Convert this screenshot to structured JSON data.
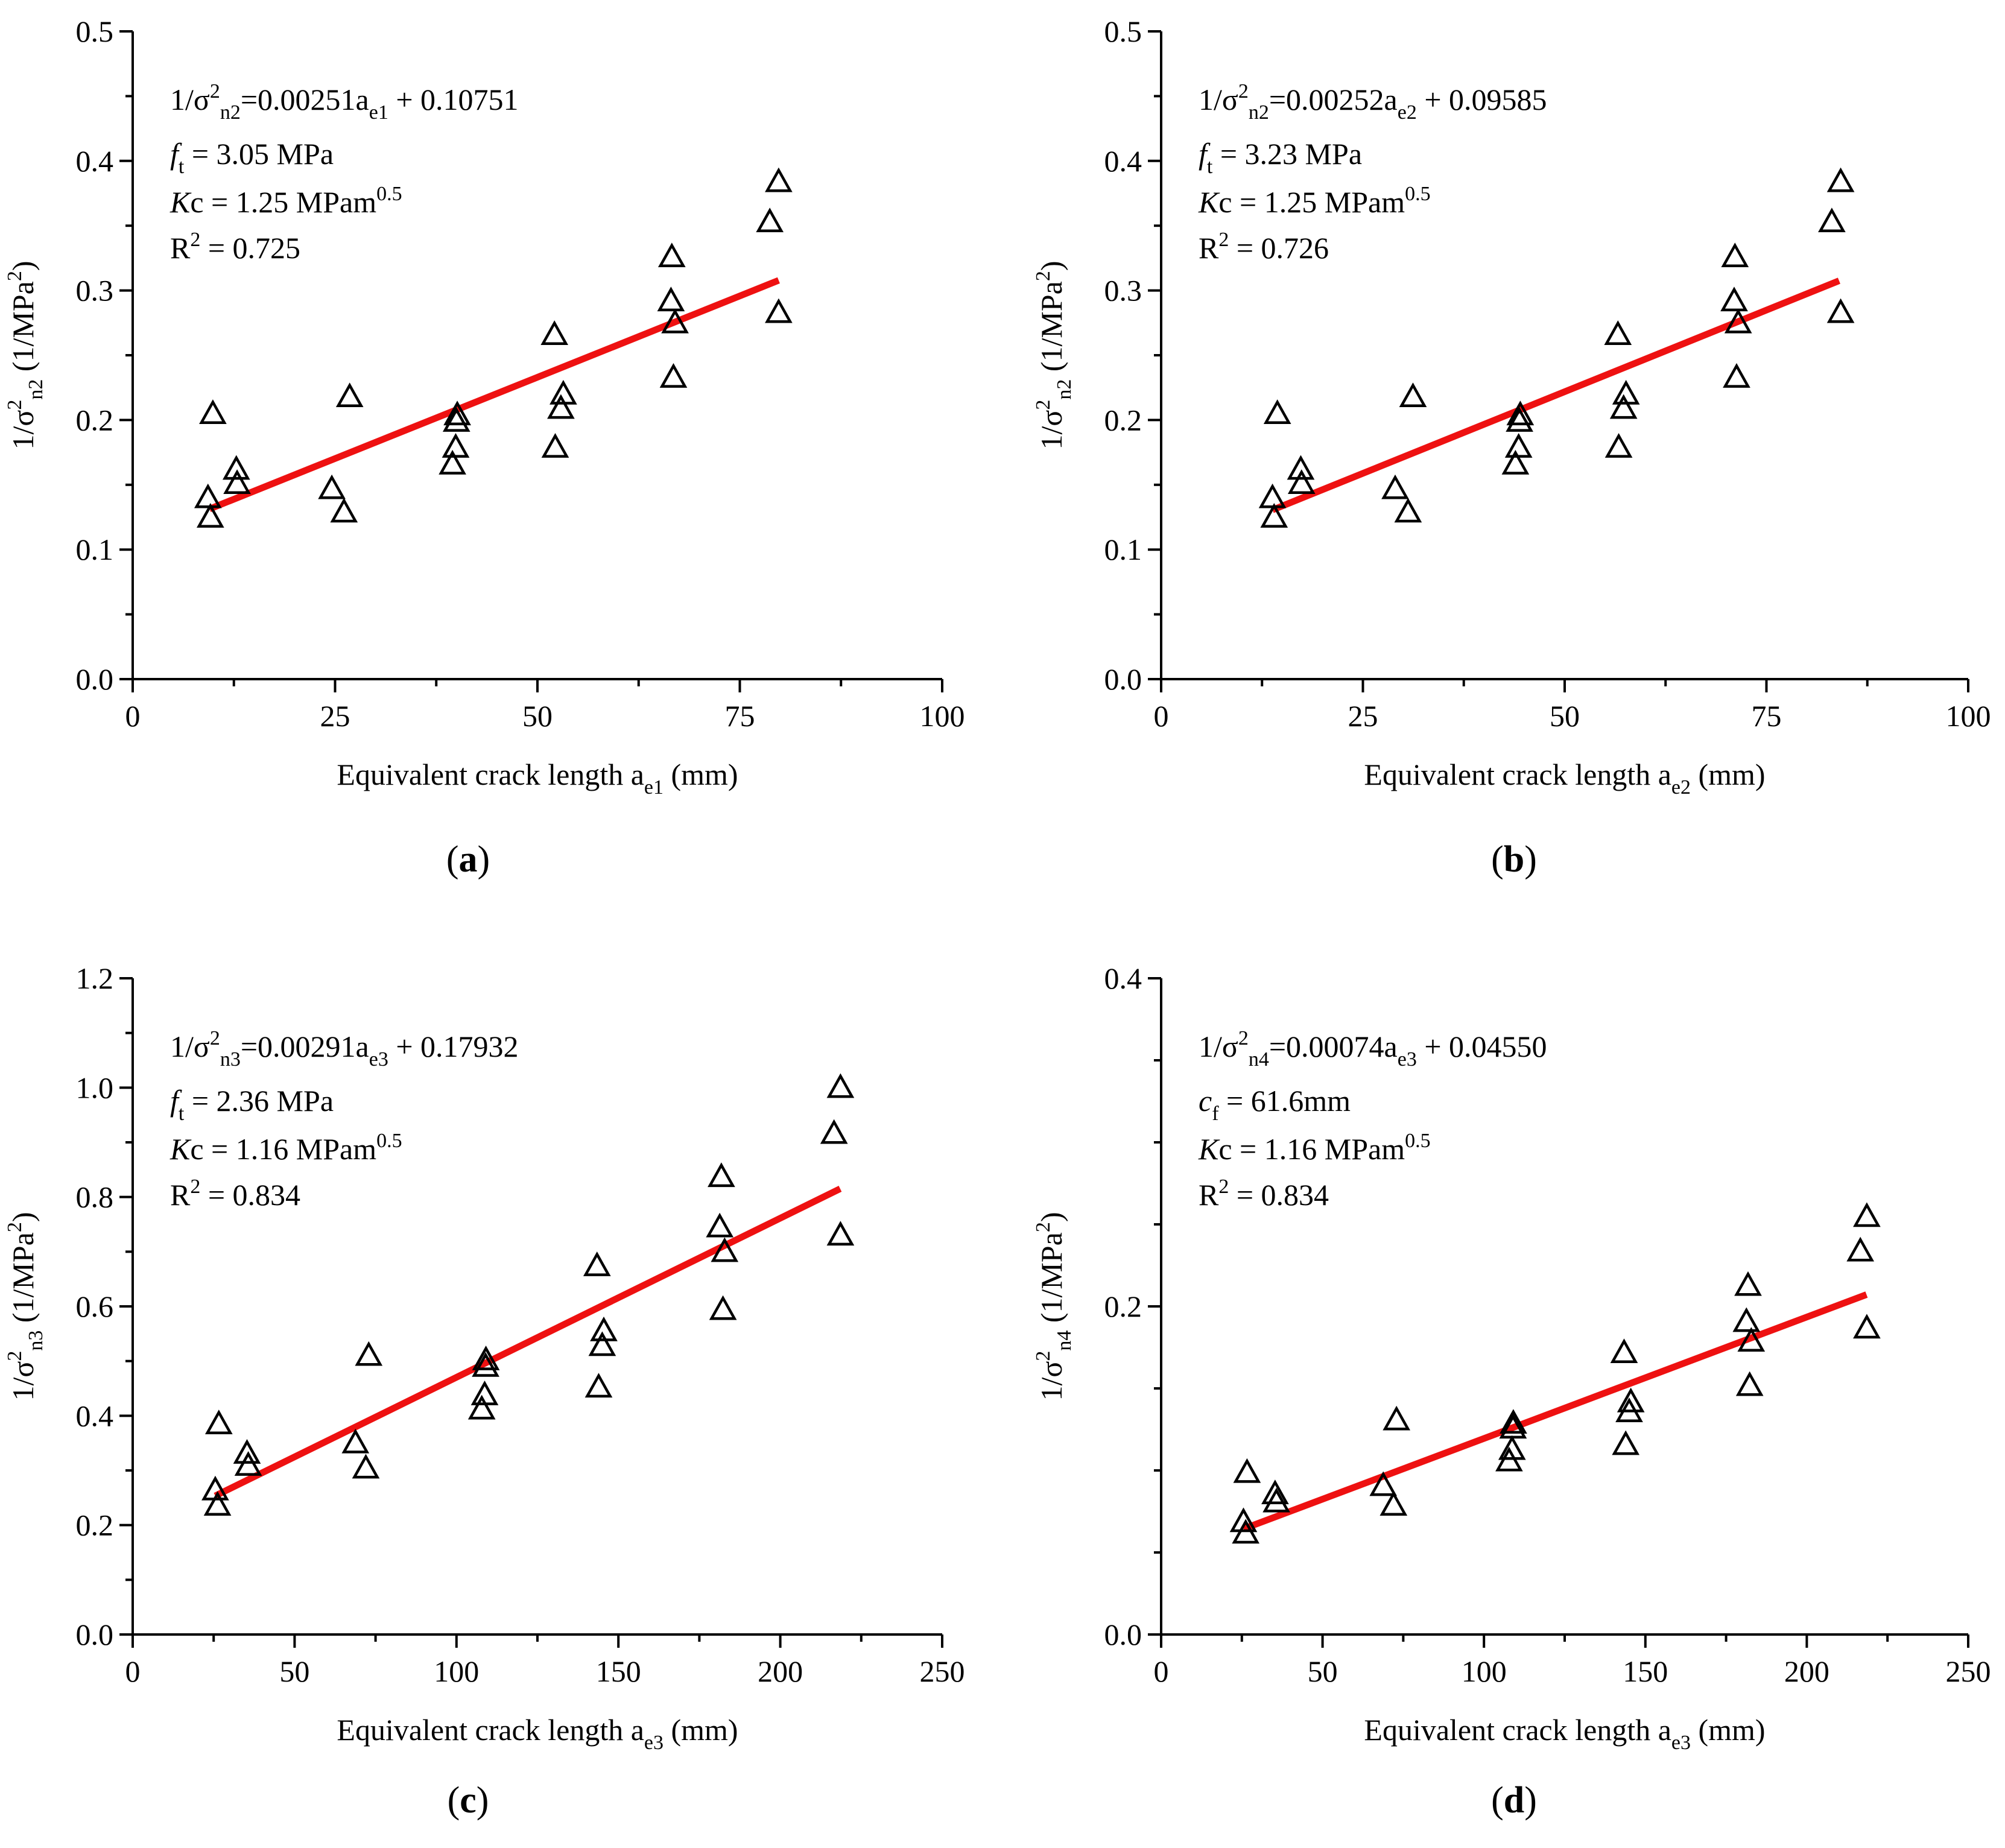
{
  "figure": {
    "panel_tags": [
      "a",
      "b",
      "c",
      "d"
    ]
  },
  "colors": {
    "fit_line": "#ee1111",
    "marker": "#000000",
    "axis": "#000000"
  },
  "chart_data": [
    {
      "id": "a",
      "type": "scatter",
      "xlabel": {
        "main": "Equivalent crack length a",
        "sub": "e1",
        "unit": " (mm)"
      },
      "ylabel": {
        "pre": "1/σ",
        "sup": "2",
        "sub": "n2",
        "unit": " (1/MPa",
        "unit_sup": "2",
        "unit_post": ")"
      },
      "xlim": [
        0,
        100
      ],
      "ylim": [
        0,
        0.5
      ],
      "xticks": [
        0,
        25,
        50,
        75,
        100
      ],
      "xtick_labels": [
        "0",
        "25",
        "50",
        "75",
        "100"
      ],
      "yticks": [
        0,
        0.1,
        0.2,
        0.3,
        0.4,
        0.5
      ],
      "ytick_labels": [
        "0.0",
        "0.1",
        "0.2",
        "0.3",
        "0.4",
        "0.5"
      ],
      "fit": {
        "slope": 0.00251,
        "intercept": 0.10751,
        "x_range": [
          9.5,
          79.8
        ]
      },
      "annotations": [
        {
          "parts": [
            {
              "t": "1/σ"
            },
            {
              "t": "2",
              "sup": true
            },
            {
              "t": "n2",
              "sub": true
            },
            {
              "t": "=0.00251a"
            },
            {
              "t": "e1",
              "sub": true
            },
            {
              "t": " + 0.10751"
            }
          ]
        },
        {
          "parts": [
            {
              "t": "f",
              "it": true
            },
            {
              "t": "t",
              "sub": true
            },
            {
              "t": " = 3.05 MPa"
            }
          ]
        },
        {
          "parts": [
            {
              "t": "K",
              "it": true
            },
            {
              "t": "c = 1.25 MPam"
            },
            {
              "t": "0.5",
              "sup": true
            }
          ]
        },
        {
          "parts": [
            {
              "t": "R"
            },
            {
              "t": "2",
              "sup": true
            },
            {
              "t": " = 0.725"
            }
          ]
        }
      ],
      "points": [
        [
          9.3,
          0.139
        ],
        [
          9.6,
          0.124
        ],
        [
          9.9,
          0.204
        ],
        [
          12.8,
          0.161
        ],
        [
          12.9,
          0.15
        ],
        [
          24.6,
          0.146
        ],
        [
          26.1,
          0.128
        ],
        [
          26.8,
          0.217
        ],
        [
          39.5,
          0.165
        ],
        [
          39.9,
          0.178
        ],
        [
          40.0,
          0.198
        ],
        [
          40.1,
          0.203
        ],
        [
          52.1,
          0.265
        ],
        [
          52.2,
          0.178
        ],
        [
          52.9,
          0.208
        ],
        [
          53.2,
          0.219
        ],
        [
          66.5,
          0.291
        ],
        [
          66.6,
          0.325
        ],
        [
          66.8,
          0.232
        ],
        [
          67.0,
          0.274
        ],
        [
          78.7,
          0.352
        ],
        [
          79.8,
          0.383
        ],
        [
          79.8,
          0.282
        ]
      ]
    },
    {
      "id": "b",
      "type": "scatter",
      "xlabel": {
        "main": "Equivalent crack length a",
        "sub": "e2",
        "unit": " (mm)"
      },
      "ylabel": {
        "pre": "1/σ",
        "sup": "2",
        "sub": "n2",
        "unit": " (1/MPa",
        "unit_sup": "2",
        "unit_post": ")"
      },
      "xlim": [
        0,
        100
      ],
      "ylim": [
        0,
        0.5
      ],
      "xticks": [
        0,
        25,
        50,
        75,
        100
      ],
      "xtick_labels": [
        "0",
        "25",
        "50",
        "75",
        "100"
      ],
      "yticks": [
        0,
        0.1,
        0.2,
        0.3,
        0.4,
        0.5
      ],
      "ytick_labels": [
        "0.0",
        "0.1",
        "0.2",
        "0.3",
        "0.4",
        "0.5"
      ],
      "fit": {
        "slope": 0.00252,
        "intercept": 0.09585,
        "x_range": [
          13.8,
          84.0
        ]
      },
      "annotations": [
        {
          "parts": [
            {
              "t": "1/σ"
            },
            {
              "t": "2",
              "sup": true
            },
            {
              "t": "n2",
              "sub": true
            },
            {
              "t": "=0.00252a"
            },
            {
              "t": "e2",
              "sub": true
            },
            {
              "t": " + 0.09585"
            }
          ]
        },
        {
          "parts": [
            {
              "t": "f",
              "it": true
            },
            {
              "t": "t",
              "sub": true
            },
            {
              "t": " = 3.23 MPa"
            }
          ]
        },
        {
          "parts": [
            {
              "t": "K",
              "it": true
            },
            {
              "t": "c = 1.25 MPam"
            },
            {
              "t": "0.5",
              "sup": true
            }
          ]
        },
        {
          "parts": [
            {
              "t": "R"
            },
            {
              "t": "2",
              "sup": true
            },
            {
              "t": " = 0.726"
            }
          ]
        }
      ],
      "points": [
        [
          13.8,
          0.139
        ],
        [
          14.0,
          0.124
        ],
        [
          14.4,
          0.204
        ],
        [
          17.3,
          0.161
        ],
        [
          17.4,
          0.15
        ],
        [
          29.0,
          0.146
        ],
        [
          30.6,
          0.128
        ],
        [
          31.2,
          0.217
        ],
        [
          43.9,
          0.165
        ],
        [
          44.3,
          0.178
        ],
        [
          44.4,
          0.198
        ],
        [
          44.5,
          0.203
        ],
        [
          56.6,
          0.265
        ],
        [
          56.7,
          0.178
        ],
        [
          57.3,
          0.208
        ],
        [
          57.6,
          0.219
        ],
        [
          71.0,
          0.291
        ],
        [
          71.1,
          0.325
        ],
        [
          71.3,
          0.232
        ],
        [
          71.5,
          0.274
        ],
        [
          83.1,
          0.352
        ],
        [
          84.2,
          0.383
        ],
        [
          84.2,
          0.282
        ]
      ]
    },
    {
      "id": "c",
      "type": "scatter",
      "xlabel": {
        "main": "Equivalent crack length a",
        "sub": "e3",
        "unit": " (mm)"
      },
      "ylabel": {
        "pre": "1/σ",
        "sup": "2",
        "sub": "n3",
        "unit": " (1/MPa",
        "unit_sup": "2",
        "unit_post": ")"
      },
      "xlim": [
        0,
        250
      ],
      "ylim": [
        0,
        1.2
      ],
      "xticks": [
        0,
        50,
        100,
        150,
        200,
        250
      ],
      "xtick_labels": [
        "0",
        "50",
        "100",
        "150",
        "200",
        "250"
      ],
      "yticks": [
        0,
        0.2,
        0.4,
        0.6,
        0.8,
        1.0,
        1.2
      ],
      "ytick_labels": [
        "0.0",
        "0.2",
        "0.4",
        "0.6",
        "0.8",
        "1.0",
        "1.2"
      ],
      "fit": {
        "slope": 0.00291,
        "intercept": 0.17932,
        "x_range": [
          25.5,
          218.5
        ]
      },
      "annotations": [
        {
          "parts": [
            {
              "t": "1/σ"
            },
            {
              "t": "2",
              "sup": true
            },
            {
              "t": "n3",
              "sub": true
            },
            {
              "t": "=0.00291a"
            },
            {
              "t": "e3",
              "sub": true
            },
            {
              "t": " + 0.17932"
            }
          ]
        },
        {
          "parts": [
            {
              "t": "f",
              "it": true
            },
            {
              "t": "t",
              "sub": true
            },
            {
              "t": " = 2.36 MPa"
            }
          ]
        },
        {
          "parts": [
            {
              "t": "K",
              "it": true
            },
            {
              "t": "c = 1.16 MPam"
            },
            {
              "t": "0.5",
              "sup": true
            }
          ]
        },
        {
          "parts": [
            {
              "t": "R"
            },
            {
              "t": "2",
              "sup": true
            },
            {
              "t": " = 0.834"
            }
          ]
        }
      ],
      "points": [
        [
          25.5,
          0.262
        ],
        [
          26.2,
          0.234
        ],
        [
          26.6,
          0.383
        ],
        [
          35.3,
          0.329
        ],
        [
          35.7,
          0.307
        ],
        [
          68.8,
          0.348
        ],
        [
          72.0,
          0.302
        ],
        [
          72.9,
          0.508
        ],
        [
          107.8,
          0.41
        ],
        [
          108.7,
          0.436
        ],
        [
          109.0,
          0.488
        ],
        [
          109.1,
          0.5
        ],
        [
          143.4,
          0.672
        ],
        [
          143.9,
          0.45
        ],
        [
          145.0,
          0.526
        ],
        [
          145.5,
          0.553
        ],
        [
          181.3,
          0.743
        ],
        [
          181.8,
          0.835
        ],
        [
          182.3,
          0.592
        ],
        [
          182.8,
          0.698
        ],
        [
          216.6,
          0.914
        ],
        [
          218.6,
          0.998
        ],
        [
          218.6,
          0.728
        ]
      ]
    },
    {
      "id": "d",
      "type": "scatter",
      "xlabel": {
        "main": "Equivalent crack length a",
        "sub": "e3",
        "unit": " (mm)"
      },
      "ylabel": {
        "pre": "1/σ",
        "sup": "2",
        "sub": "n4",
        "unit": " (1/MPa",
        "unit_sup": "2",
        "unit_post": ")"
      },
      "xlim": [
        0,
        250
      ],
      "ylim": [
        0,
        0.4
      ],
      "xticks": [
        0,
        50,
        100,
        150,
        200,
        250
      ],
      "xtick_labels": [
        "0",
        "50",
        "100",
        "150",
        "200",
        "250"
      ],
      "yticks": [
        0,
        0.2,
        0.4
      ],
      "ytick_labels": [
        "0.0",
        "0.2",
        "0.4"
      ],
      "fit": {
        "slope": 0.00074,
        "intercept": 0.0455,
        "x_range": [
          25.5,
          218.5
        ]
      },
      "annotations": [
        {
          "parts": [
            {
              "t": "1/σ"
            },
            {
              "t": "2",
              "sup": true
            },
            {
              "t": "n4",
              "sub": true
            },
            {
              "t": "=0.00074a"
            },
            {
              "t": "e3",
              "sub": true
            },
            {
              "t": " + 0.04550"
            }
          ]
        },
        {
          "parts": [
            {
              "t": "c",
              "it": true
            },
            {
              "t": "f",
              "sub": true
            },
            {
              "t": " = 61.6mm"
            }
          ]
        },
        {
          "parts": [
            {
              "t": "K",
              "it": true
            },
            {
              "t": "c = 1.16 MPam"
            },
            {
              "t": "0.5",
              "sup": true
            }
          ]
        },
        {
          "parts": [
            {
              "t": "R"
            },
            {
              "t": "2",
              "sup": true
            },
            {
              "t": " = 0.834"
            }
          ]
        }
      ],
      "points": [
        [
          25.5,
          0.068
        ],
        [
          26.2,
          0.061
        ],
        [
          26.6,
          0.098
        ],
        [
          35.3,
          0.085
        ],
        [
          35.7,
          0.08
        ],
        [
          68.8,
          0.09
        ],
        [
          72.0,
          0.078
        ],
        [
          72.9,
          0.13
        ],
        [
          107.8,
          0.105
        ],
        [
          108.7,
          0.112
        ],
        [
          109.0,
          0.125
        ],
        [
          109.1,
          0.128
        ],
        [
          143.4,
          0.171
        ],
        [
          143.9,
          0.115
        ],
        [
          145.0,
          0.135
        ],
        [
          145.5,
          0.141
        ],
        [
          181.3,
          0.19
        ],
        [
          181.8,
          0.212
        ],
        [
          182.3,
          0.151
        ],
        [
          182.8,
          0.178
        ],
        [
          216.6,
          0.233
        ],
        [
          218.6,
          0.254
        ],
        [
          218.6,
          0.186
        ]
      ]
    }
  ]
}
